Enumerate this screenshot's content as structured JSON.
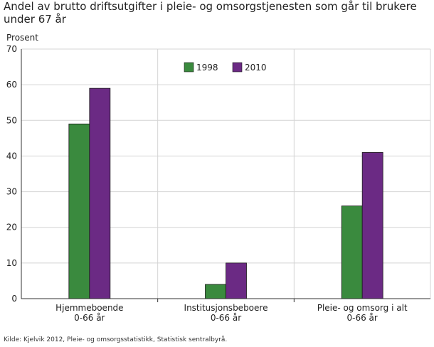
{
  "title": "Andel av brutto driftsutgifter i pleie- og omsorgstjenesten som går til brukere under 67 år",
  "source": "Kilde: Kjelvik 2012, Pleie- og omsorgsstatistikk, Statistisk sentralbyrå.",
  "chart_data": {
    "type": "bar",
    "title": "Andel av brutto driftsutgifter i pleie- og omsorgstjenesten som går til brukere under 67 år",
    "ylabel": "Prosent",
    "xlabel": "",
    "ylim": [
      0,
      70
    ],
    "yticks": [
      0,
      10,
      20,
      30,
      40,
      50,
      60,
      70
    ],
    "categories": [
      [
        "Hjemmeboende",
        "0-66 år"
      ],
      [
        "Institusjonsbeboere",
        "0-66 år"
      ],
      [
        "Pleie- og omsorg i alt",
        "0-66 år"
      ]
    ],
    "series": [
      {
        "name": "1998",
        "color": "#3a8a3e",
        "values": [
          49,
          4,
          26
        ]
      },
      {
        "name": "2010",
        "color": "#6b2a84",
        "values": [
          59,
          10,
          41
        ]
      }
    ],
    "grid": true,
    "legend_position": "top-center"
  }
}
